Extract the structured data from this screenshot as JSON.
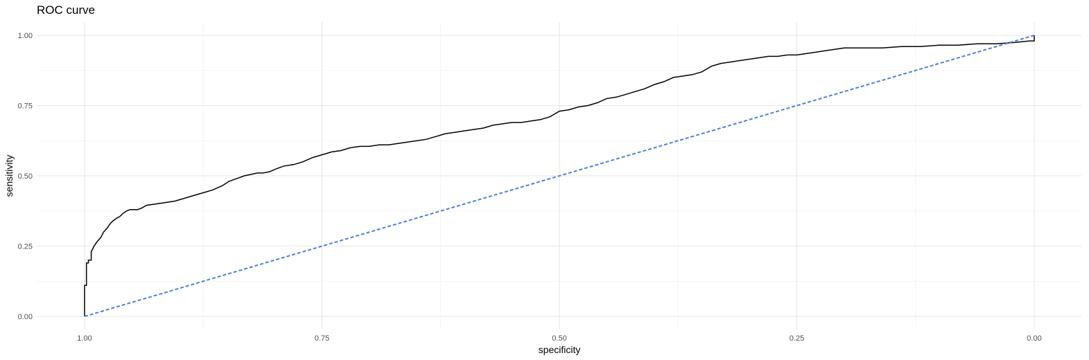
{
  "chart_data": {
    "type": "line",
    "title": "ROC curve",
    "xlabel": "specificity",
    "ylabel": "sensitivity",
    "xlim": [
      1.0,
      0.0
    ],
    "ylim": [
      0.0,
      1.0
    ],
    "x_reversed": true,
    "grid": true,
    "x_ticks": [
      "1.00",
      "0.75",
      "0.50",
      "0.25",
      "0.00"
    ],
    "x_tick_values": [
      1.0,
      0.75,
      0.5,
      0.25,
      0.0
    ],
    "y_ticks": [
      "0.00",
      "0.25",
      "0.50",
      "0.75",
      "1.00"
    ],
    "y_tick_values": [
      0.0,
      0.25,
      0.5,
      0.75,
      1.0
    ],
    "series": [
      {
        "kind": "roc-step",
        "color": "#000000",
        "x": [
          1.0,
          1.0,
          0.998,
          0.998,
          0.996,
          0.996,
          0.993,
          0.993,
          0.99,
          0.987,
          0.983,
          0.98,
          0.976,
          0.973,
          0.97,
          0.966,
          0.963,
          0.96,
          0.956,
          0.952,
          0.948,
          0.944,
          0.94,
          0.935,
          0.925,
          0.915,
          0.905,
          0.895,
          0.885,
          0.875,
          0.865,
          0.855,
          0.848,
          0.84,
          0.832,
          0.825,
          0.818,
          0.812,
          0.805,
          0.798,
          0.79,
          0.78,
          0.77,
          0.76,
          0.75,
          0.74,
          0.73,
          0.72,
          0.71,
          0.7,
          0.69,
          0.68,
          0.67,
          0.66,
          0.65,
          0.64,
          0.63,
          0.62,
          0.61,
          0.6,
          0.59,
          0.58,
          0.57,
          0.56,
          0.55,
          0.54,
          0.53,
          0.52,
          0.51,
          0.5,
          0.49,
          0.48,
          0.47,
          0.46,
          0.45,
          0.44,
          0.43,
          0.42,
          0.41,
          0.4,
          0.39,
          0.38,
          0.37,
          0.36,
          0.35,
          0.34,
          0.33,
          0.32,
          0.31,
          0.3,
          0.29,
          0.28,
          0.27,
          0.26,
          0.25,
          0.24,
          0.23,
          0.22,
          0.21,
          0.2,
          0.18,
          0.16,
          0.14,
          0.12,
          0.1,
          0.08,
          0.06,
          0.04,
          0.02,
          0.005,
          0.0,
          0.0
        ],
        "y": [
          0.0,
          0.11,
          0.11,
          0.19,
          0.19,
          0.2,
          0.2,
          0.23,
          0.25,
          0.265,
          0.28,
          0.3,
          0.315,
          0.33,
          0.34,
          0.35,
          0.355,
          0.365,
          0.375,
          0.38,
          0.38,
          0.38,
          0.385,
          0.395,
          0.4,
          0.405,
          0.41,
          0.42,
          0.43,
          0.44,
          0.45,
          0.465,
          0.48,
          0.49,
          0.5,
          0.505,
          0.51,
          0.51,
          0.515,
          0.525,
          0.535,
          0.54,
          0.55,
          0.565,
          0.575,
          0.585,
          0.59,
          0.6,
          0.605,
          0.605,
          0.61,
          0.61,
          0.615,
          0.62,
          0.625,
          0.63,
          0.64,
          0.65,
          0.655,
          0.66,
          0.665,
          0.67,
          0.68,
          0.685,
          0.69,
          0.69,
          0.695,
          0.7,
          0.71,
          0.73,
          0.735,
          0.745,
          0.75,
          0.76,
          0.775,
          0.78,
          0.79,
          0.8,
          0.81,
          0.825,
          0.835,
          0.85,
          0.855,
          0.86,
          0.87,
          0.89,
          0.9,
          0.905,
          0.91,
          0.915,
          0.92,
          0.925,
          0.925,
          0.93,
          0.93,
          0.935,
          0.94,
          0.945,
          0.95,
          0.955,
          0.955,
          0.955,
          0.96,
          0.96,
          0.965,
          0.965,
          0.97,
          0.97,
          0.975,
          0.98,
          0.98,
          1.0
        ]
      },
      {
        "kind": "diagonal",
        "color": "#4a7fe0",
        "dashed": true,
        "x": [
          1.0,
          0.0
        ],
        "y": [
          0.0,
          1.0
        ]
      }
    ]
  }
}
